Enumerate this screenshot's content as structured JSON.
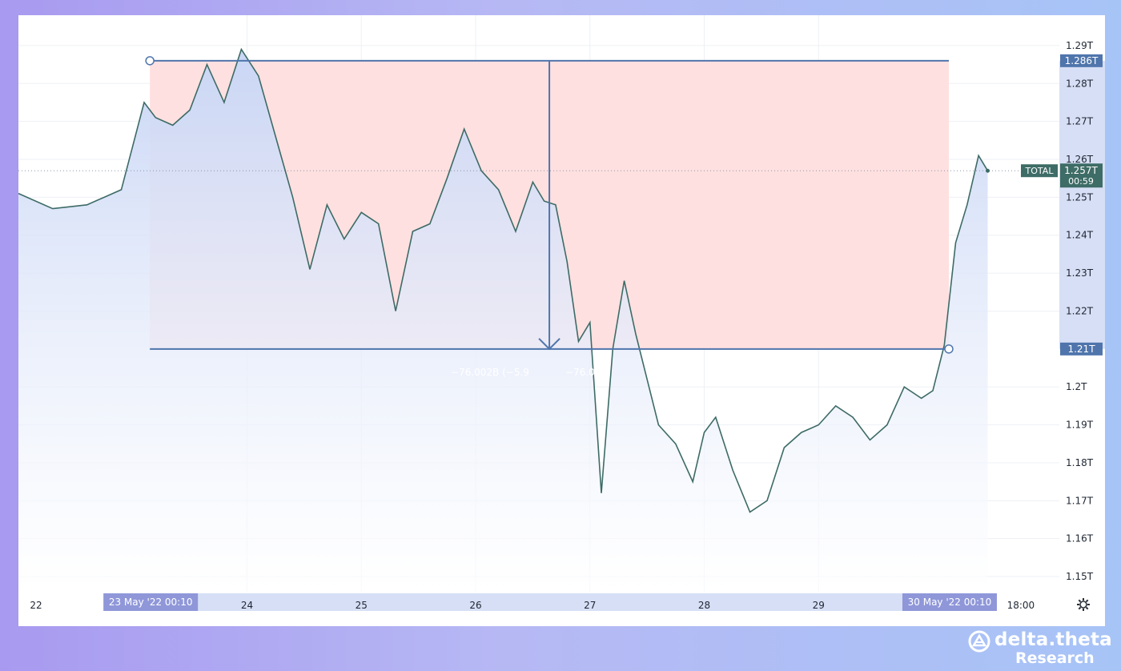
{
  "colors": {
    "line": "#3d6b66",
    "area_top": "#c9d6f5",
    "area_bottom": "#ffffff",
    "box_fill": "#ffe0e0",
    "measure": "#4f75ac",
    "tag_bg": "#3e6c66",
    "label_bg": "#4f75ac",
    "date_label_bg": "#8f97d9"
  },
  "chart_data": {
    "type": "area",
    "symbol": "TOTAL",
    "x_tick_labels": [
      "22",
      "24",
      "25",
      "26",
      "27",
      "28",
      "29",
      "18:00"
    ],
    "y_tick_labels": [
      "1.29T",
      "1.28T",
      "1.27T",
      "1.26T",
      "1.25T",
      "1.24T",
      "1.23T",
      "1.22T",
      "1.2T",
      "1.19T",
      "1.18T",
      "1.17T",
      "1.16T",
      "1.15T"
    ],
    "ylim": [
      1.146,
      1.298
    ],
    "xlim": [
      0,
      8.77
    ],
    "last_price_label": "1.257T",
    "countdown": "00:59",
    "x": [
      0.0,
      0.3,
      0.6,
      0.9,
      1.1,
      1.2,
      1.35,
      1.5,
      1.65,
      1.8,
      1.95,
      2.1,
      2.25,
      2.4,
      2.55,
      2.7,
      2.85,
      3.0,
      3.15,
      3.3,
      3.45,
      3.6,
      3.75,
      3.9,
      4.05,
      4.2,
      4.35,
      4.5,
      4.6,
      4.7,
      4.8,
      4.9,
      5.0,
      5.1,
      5.2,
      5.3,
      5.4,
      5.6,
      5.75,
      5.9,
      6.0,
      6.1,
      6.25,
      6.4,
      6.55,
      6.7,
      6.85,
      7.0,
      7.15,
      7.3,
      7.45,
      7.6,
      7.75,
      7.9,
      8.0,
      8.1,
      8.2,
      8.3,
      8.4,
      8.48
    ],
    "y": [
      1.251,
      1.247,
      1.248,
      1.252,
      1.275,
      1.271,
      1.269,
      1.273,
      1.285,
      1.275,
      1.289,
      1.282,
      1.266,
      1.25,
      1.231,
      1.248,
      1.239,
      1.246,
      1.243,
      1.22,
      1.241,
      1.243,
      1.255,
      1.268,
      1.257,
      1.252,
      1.241,
      1.254,
      1.249,
      1.248,
      1.233,
      1.212,
      1.217,
      1.172,
      1.21,
      1.228,
      1.214,
      1.19,
      1.185,
      1.175,
      1.188,
      1.192,
      1.178,
      1.167,
      1.17,
      1.184,
      1.188,
      1.19,
      1.195,
      1.192,
      1.186,
      1.19,
      1.2,
      1.197,
      1.199,
      1.211,
      1.238,
      1.248,
      1.261,
      1.257
    ]
  },
  "measure": {
    "change_text": "−76.002B (−5.9",
    "change_text_2": "−76.00",
    "top_value_label": "1.286T",
    "bottom_value_label": "1.21T",
    "start_date_label": "23 May '22   00:10",
    "end_date_label": "30 May '22   00:10",
    "start_value": 1.286,
    "end_value": 1.21,
    "start_x": 1.15,
    "end_x": 8.14
  },
  "brand": {
    "name": "delta.theta",
    "sub": "Research"
  },
  "settings_icon": "gear-icon"
}
